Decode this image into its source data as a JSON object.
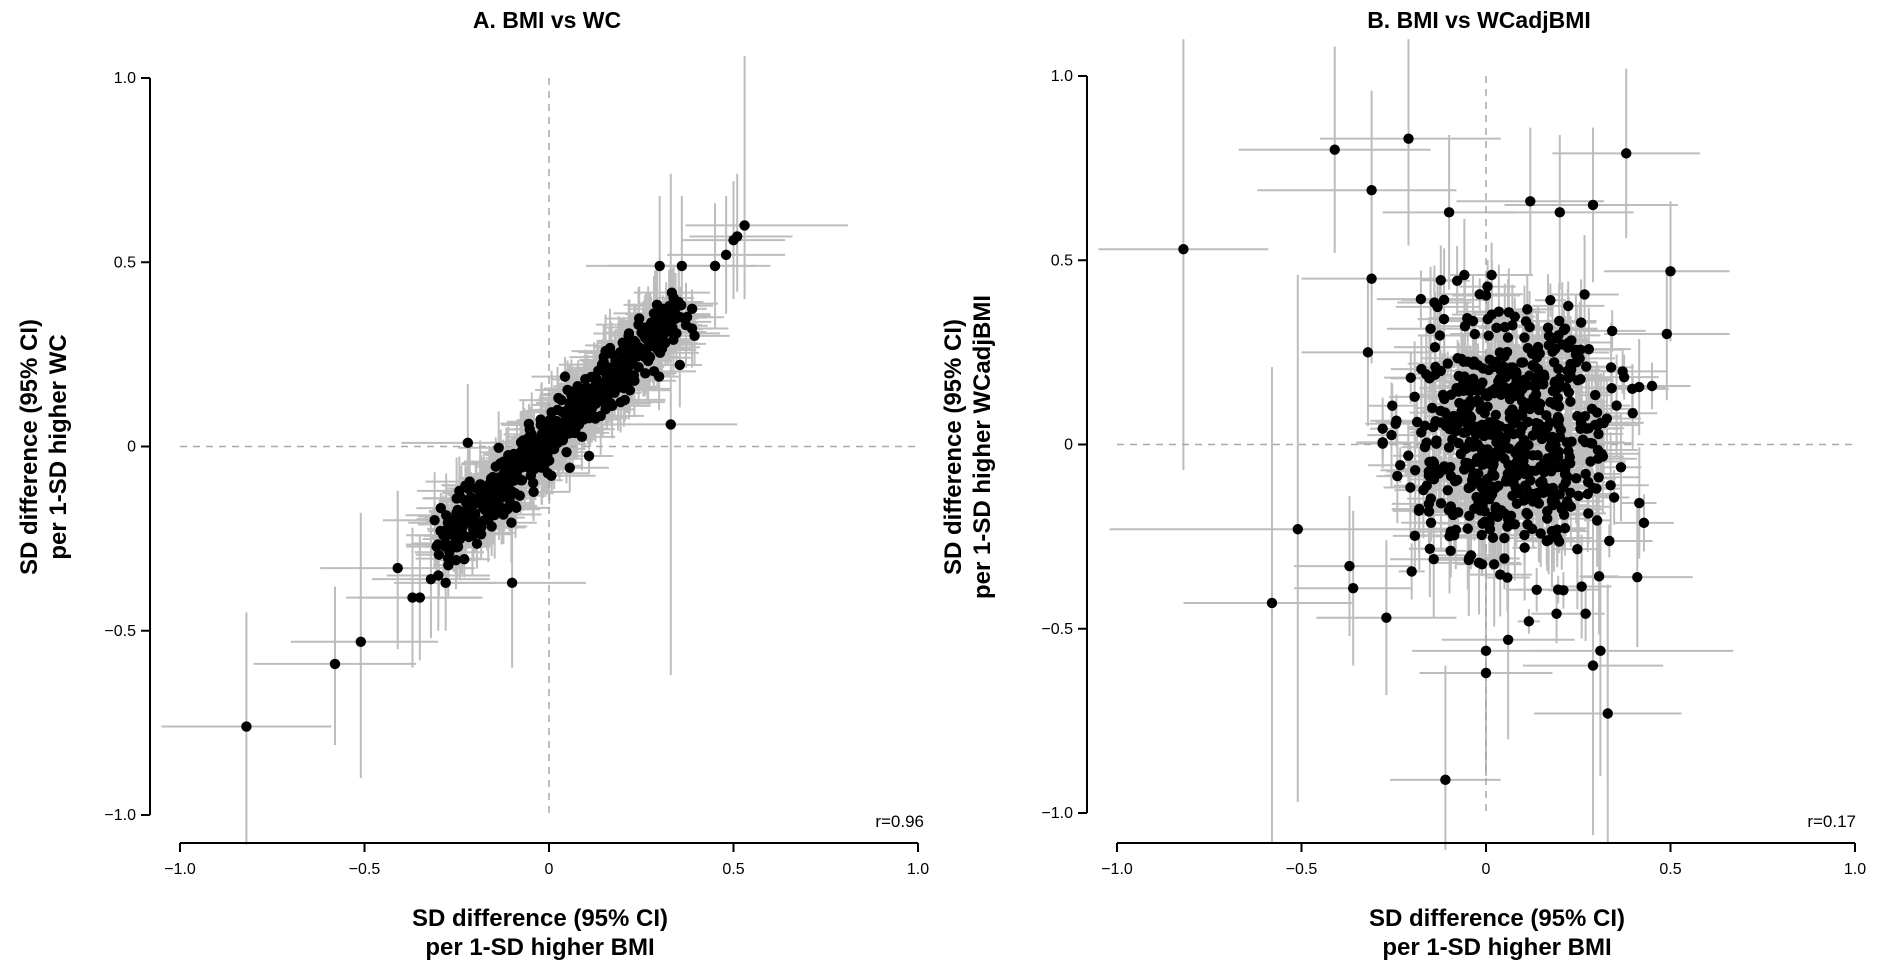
{
  "chart_data": [
    {
      "type": "scatter",
      "title": "A. BMI vs WC",
      "xlabel_lines": [
        "SD difference (95% CI)",
        "per 1-SD higher BMI"
      ],
      "ylabel_lines": [
        "SD difference (95% CI)",
        "per 1-SD higher WC"
      ],
      "xlim": [
        -1.0,
        1.0
      ],
      "ylim": [
        -1.0,
        1.0
      ],
      "xticks": [
        -1.0,
        -0.5,
        0,
        0.5,
        1.0
      ],
      "xtick_labels": [
        "−1.0",
        "−0.5",
        "0",
        "0.5",
        "1.0"
      ],
      "yticks": [
        -1.0,
        -0.5,
        0,
        0.5,
        1.0
      ],
      "ytick_labels": [
        "−1.0",
        "−0.5",
        "0",
        "0.5",
        "1.0"
      ],
      "reference_lines": {
        "x": 0,
        "y": 0,
        "style": "dashed"
      },
      "annotation": "r=0.96",
      "error_bar_color": "#bdbdbd",
      "point_color": "#000000",
      "points": [
        {
          "x": -0.82,
          "y": -0.76,
          "xlo": -1.05,
          "xhi": -0.59,
          "ylo": -1.08,
          "yhi": -0.45
        },
        {
          "x": -0.58,
          "y": -0.59,
          "xlo": -0.8,
          "xhi": -0.36,
          "ylo": -0.81,
          "yhi": -0.38
        },
        {
          "x": -0.51,
          "y": -0.53,
          "xlo": -0.7,
          "xhi": -0.3,
          "ylo": -0.9,
          "yhi": -0.18
        },
        {
          "x": -0.41,
          "y": -0.33,
          "xlo": -0.62,
          "xhi": -0.2,
          "ylo": -0.55,
          "yhi": -0.12
        },
        {
          "x": -0.37,
          "y": -0.41,
          "xlo": -0.55,
          "xhi": -0.19,
          "ylo": -0.6,
          "yhi": -0.22
        },
        {
          "x": -0.35,
          "y": -0.41,
          "xlo": -0.52,
          "xhi": -0.18,
          "ylo": -0.58,
          "yhi": -0.24
        },
        {
          "x": -0.32,
          "y": -0.36,
          "xlo": -0.48,
          "xhi": -0.16,
          "ylo": -0.52,
          "yhi": -0.2
        },
        {
          "x": -0.3,
          "y": -0.35,
          "xlo": -0.44,
          "xhi": -0.16,
          "ylo": -0.5,
          "yhi": -0.2
        },
        {
          "x": -0.28,
          "y": -0.37,
          "xlo": -0.42,
          "xhi": -0.14,
          "ylo": -0.5,
          "yhi": -0.24
        },
        {
          "x": -0.31,
          "y": -0.2,
          "xlo": -0.45,
          "xhi": -0.17,
          "ylo": -0.33,
          "yhi": -0.07
        },
        {
          "x": -0.1,
          "y": -0.37,
          "xlo": -0.3,
          "xhi": 0.1,
          "ylo": -0.6,
          "yhi": -0.14
        },
        {
          "x": -0.22,
          "y": 0.01,
          "xlo": -0.4,
          "xhi": -0.04,
          "ylo": -0.15,
          "yhi": 0.17
        },
        {
          "x": 0.33,
          "y": 0.06,
          "xlo": 0.15,
          "xhi": 0.51,
          "ylo": -0.62,
          "yhi": 0.74
        },
        {
          "x": 0.3,
          "y": 0.49,
          "xlo": 0.1,
          "xhi": 0.5,
          "ylo": 0.3,
          "yhi": 0.68
        },
        {
          "x": 0.36,
          "y": 0.49,
          "xlo": 0.16,
          "xhi": 0.56,
          "ylo": 0.3,
          "yhi": 0.68
        },
        {
          "x": 0.45,
          "y": 0.49,
          "xlo": 0.3,
          "xhi": 0.6,
          "ylo": 0.32,
          "yhi": 0.66
        },
        {
          "x": 0.48,
          "y": 0.52,
          "xlo": 0.32,
          "xhi": 0.64,
          "ylo": 0.36,
          "yhi": 0.68
        },
        {
          "x": 0.5,
          "y": 0.56,
          "xlo": 0.36,
          "xhi": 0.64,
          "ylo": 0.4,
          "yhi": 0.72
        },
        {
          "x": 0.51,
          "y": 0.57,
          "xlo": 0.38,
          "xhi": 0.66,
          "ylo": 0.42,
          "yhi": 0.74
        },
        {
          "x": 0.53,
          "y": 0.6,
          "xlo": 0.37,
          "xhi": 0.81,
          "ylo": 0.4,
          "yhi": 1.06
        }
      ]
    },
    {
      "type": "scatter",
      "title": "B. BMI vs WCadjBMI",
      "xlabel_lines": [
        "SD difference (95% CI)",
        "per 1-SD higher BMI"
      ],
      "ylabel_lines": [
        "SD difference (95% CI)",
        "per 1-SD higher WCadjBMI"
      ],
      "xlim": [
        -1.0,
        1.0
      ],
      "ylim": [
        -1.0,
        1.0
      ],
      "xticks": [
        -1.0,
        -0.5,
        0,
        0.5,
        1.0
      ],
      "xtick_labels": [
        "−1.0",
        "−0.5",
        "0",
        "0.5",
        "1.0"
      ],
      "yticks": [
        -1.0,
        -0.5,
        0,
        0.5,
        1.0
      ],
      "ytick_labels": [
        "−1.0",
        "−0.5",
        "0",
        "0.5",
        "1.0"
      ],
      "reference_lines": {
        "x": 0,
        "y": 0,
        "style": "dashed"
      },
      "annotation": "r=0.17",
      "error_bar_color": "#bdbdbd",
      "point_color": "#000000",
      "points": [
        {
          "x": -0.82,
          "y": 0.53,
          "xlo": -1.05,
          "xhi": -0.59,
          "ylo": -0.07,
          "yhi": 1.1
        },
        {
          "x": -0.58,
          "y": -0.43,
          "xlo": -0.82,
          "xhi": -0.36,
          "ylo": -1.08,
          "yhi": 0.21
        },
        {
          "x": -0.51,
          "y": -0.23,
          "xlo": -1.02,
          "xhi": -0.08,
          "ylo": -0.97,
          "yhi": 0.46
        },
        {
          "x": -0.41,
          "y": 0.8,
          "xlo": -0.67,
          "xhi": -0.15,
          "ylo": 0.52,
          "yhi": 1.08
        },
        {
          "x": -0.21,
          "y": 0.83,
          "xlo": -0.45,
          "xhi": 0.04,
          "ylo": 0.54,
          "yhi": 1.1
        },
        {
          "x": -0.31,
          "y": 0.69,
          "xlo": -0.62,
          "xhi": -0.08,
          "ylo": 0.41,
          "yhi": 0.96
        },
        {
          "x": -0.36,
          "y": -0.39,
          "xlo": -0.52,
          "xhi": -0.2,
          "ylo": -0.6,
          "yhi": -0.18
        },
        {
          "x": -0.37,
          "y": -0.33,
          "xlo": -0.52,
          "xhi": -0.2,
          "ylo": -0.52,
          "yhi": -0.14
        },
        {
          "x": -0.27,
          "y": -0.47,
          "xlo": -0.46,
          "xhi": -0.08,
          "ylo": -0.68,
          "yhi": -0.26
        },
        {
          "x": -0.32,
          "y": 0.25,
          "xlo": -0.5,
          "xhi": -0.14,
          "ylo": 0.05,
          "yhi": 0.45
        },
        {
          "x": -0.31,
          "y": 0.45,
          "xlo": -0.5,
          "xhi": -0.12,
          "ylo": 0.22,
          "yhi": 0.68
        },
        {
          "x": -0.11,
          "y": -0.91,
          "xlo": -0.26,
          "xhi": 0.04,
          "ylo": -1.1,
          "yhi": -0.6
        },
        {
          "x": 0.12,
          "y": 0.66,
          "xlo": -0.08,
          "xhi": 0.32,
          "ylo": 0.46,
          "yhi": 0.86
        },
        {
          "x": 0.29,
          "y": 0.65,
          "xlo": 0.05,
          "xhi": 0.52,
          "ylo": 0.44,
          "yhi": 0.86
        },
        {
          "x": 0.38,
          "y": 0.79,
          "xlo": 0.18,
          "xhi": 0.58,
          "ylo": 0.56,
          "yhi": 1.02
        },
        {
          "x": 0.2,
          "y": 0.63,
          "xlo": 0.0,
          "xhi": 0.4,
          "ylo": 0.42,
          "yhi": 0.84
        },
        {
          "x": -0.1,
          "y": 0.63,
          "xlo": -0.28,
          "xhi": 0.08,
          "ylo": 0.42,
          "yhi": 0.84
        },
        {
          "x": 0.5,
          "y": 0.47,
          "xlo": 0.32,
          "xhi": 0.66,
          "ylo": 0.28,
          "yhi": 0.66
        },
        {
          "x": 0.49,
          "y": 0.3,
          "xlo": 0.32,
          "xhi": 0.66,
          "ylo": 0.12,
          "yhi": 0.48
        },
        {
          "x": 0.41,
          "y": -0.36,
          "xlo": 0.26,
          "xhi": 0.56,
          "ylo": -0.55,
          "yhi": -0.17
        },
        {
          "x": 0.33,
          "y": -0.73,
          "xlo": 0.13,
          "xhi": 0.53,
          "ylo": -1.08,
          "yhi": -0.38
        },
        {
          "x": 0.29,
          "y": -0.6,
          "xlo": 0.1,
          "xhi": 0.48,
          "ylo": -1.06,
          "yhi": -0.14
        },
        {
          "x": 0.31,
          "y": -0.56,
          "xlo": 0.12,
          "xhi": 0.67,
          "ylo": -0.9,
          "yhi": -0.2
        },
        {
          "x": 0.0,
          "y": -0.56,
          "xlo": -0.2,
          "xhi": 0.2,
          "ylo": -0.85,
          "yhi": -0.27
        },
        {
          "x": 0.0,
          "y": -0.62,
          "xlo": -0.18,
          "xhi": 0.18,
          "ylo": -0.9,
          "yhi": -0.34
        },
        {
          "x": 0.06,
          "y": -0.53,
          "xlo": -0.12,
          "xhi": 0.24,
          "ylo": -0.8,
          "yhi": -0.26
        }
      ]
    }
  ]
}
